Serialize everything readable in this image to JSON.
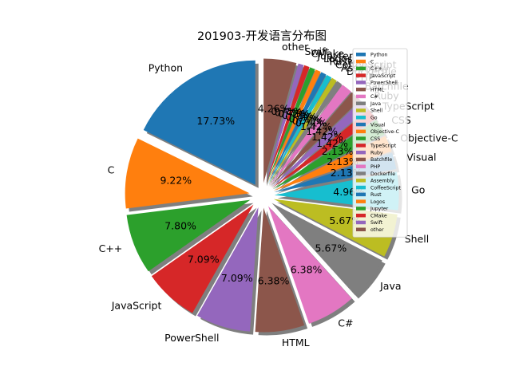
{
  "chart_data": {
    "type": "pie",
    "title": "201903-开发语言分布图",
    "legend_position": "right",
    "start_angle_deg": 90,
    "direction": "counterclockwise",
    "exploded": true,
    "shadow": true,
    "slices": [
      {
        "label": "Python",
        "percent": 17.73,
        "pct_label": "17.73%",
        "color": "#1f77b4"
      },
      {
        "label": "C",
        "percent": 9.22,
        "pct_label": "9.22%",
        "color": "#ff7f0e"
      },
      {
        "label": "C++",
        "percent": 7.8,
        "pct_label": "7.80%",
        "color": "#2ca02c"
      },
      {
        "label": "JavaScript",
        "percent": 7.09,
        "pct_label": "7.09%",
        "color": "#d62728"
      },
      {
        "label": "PowerShell",
        "percent": 7.09,
        "pct_label": "7.09%",
        "color": "#9467bd"
      },
      {
        "label": "HTML",
        "percent": 6.38,
        "pct_label": "6.38%",
        "color": "#8c564b"
      },
      {
        "label": "C#",
        "percent": 6.38,
        "pct_label": "6.38%",
        "color": "#e377c2"
      },
      {
        "label": "Java",
        "percent": 5.67,
        "pct_label": "5.67%",
        "color": "#7f7f7f"
      },
      {
        "label": "Shell",
        "percent": 5.67,
        "pct_label": "5.67%",
        "color": "#bcbd22"
      },
      {
        "label": "Go",
        "percent": 4.96,
        "pct_label": "4.96%",
        "color": "#17becf"
      },
      {
        "label": "Visual",
        "percent": 2.13,
        "pct_label": "2.13%",
        "color": "#1f77b4"
      },
      {
        "label": "Objective-C",
        "percent": 2.13,
        "pct_label": "2.13%",
        "color": "#ff7f0e"
      },
      {
        "label": "CSS",
        "percent": 2.13,
        "pct_label": "2.13%",
        "color": "#2ca02c"
      },
      {
        "label": "TypeScript",
        "percent": 1.42,
        "pct_label": "1.42%",
        "color": "#d62728"
      },
      {
        "label": "Ruby",
        "percent": 1.42,
        "pct_label": "1.42%",
        "color": "#9467bd"
      },
      {
        "label": "Batchfile",
        "percent": 1.42,
        "pct_label": "1.42%",
        "color": "#8c564b"
      },
      {
        "label": "PHP",
        "percent": 1.42,
        "pct_label": "1.42%",
        "color": "#e377c2"
      },
      {
        "label": "Dockerfile",
        "percent": 0.71,
        "pct_label": "0.71%",
        "color": "#7f7f7f"
      },
      {
        "label": "Assembly",
        "percent": 0.71,
        "pct_label": "0.71%",
        "color": "#bcbd22"
      },
      {
        "label": "CoffeeScript",
        "percent": 0.71,
        "pct_label": "0.71%",
        "color": "#17becf"
      },
      {
        "label": "Rust",
        "percent": 0.71,
        "pct_label": "0.71%",
        "color": "#1f77b4"
      },
      {
        "label": "Logos",
        "percent": 0.71,
        "pct_label": "0.71%",
        "color": "#ff7f0e"
      },
      {
        "label": "Jupyter",
        "percent": 0.71,
        "pct_label": "0.71%",
        "color": "#2ca02c"
      },
      {
        "label": "CMake",
        "percent": 0.71,
        "pct_label": "0.71%",
        "color": "#d62728"
      },
      {
        "label": "Swift",
        "percent": 0.71,
        "pct_label": "0.71%",
        "color": "#9467bd"
      },
      {
        "label": "other",
        "percent": 4.26,
        "pct_label": "4.26%",
        "color": "#8c564b"
      }
    ]
  }
}
